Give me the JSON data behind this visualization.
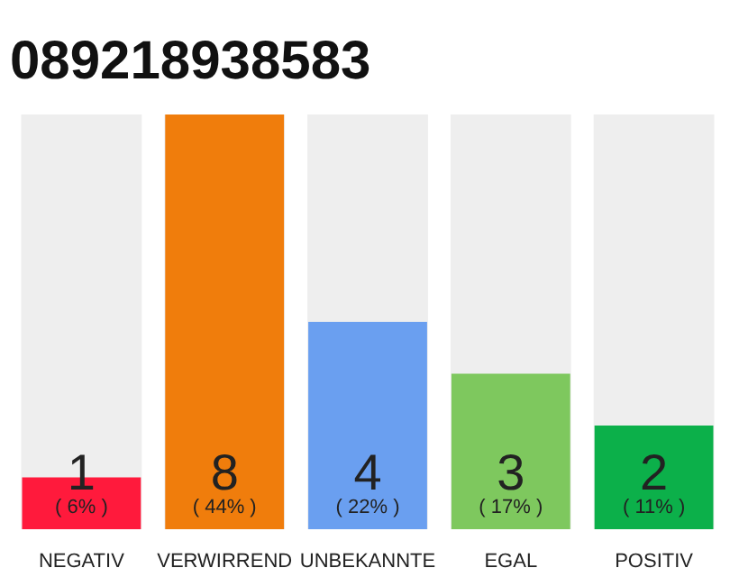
{
  "chart_data": {
    "type": "bar",
    "title": "089218938583",
    "categories": [
      "NEGATIV",
      "VERWIRREND",
      "UNBEKANNTE",
      "EGAL",
      "POSITIV"
    ],
    "values": [
      1,
      8,
      4,
      3,
      2
    ],
    "colors": [
      "#ff1a3c",
      "#f07d0c",
      "#6a9ff0",
      "#7ec85e",
      "#0cb04a"
    ],
    "ylim": [
      0,
      8
    ],
    "tick_labels": "x",
    "grid": false,
    "data_labels": true,
    "annotations": [
      {
        "text": "( 6% )",
        "x": "NEGATIV",
        "y": 0
      },
      {
        "text": "( 44% )",
        "x": "VERWIRREND",
        "y": 0
      },
      {
        "text": "( 22% )",
        "x": "UNBEKANNTE",
        "y": 0
      },
      {
        "text": "( 17% )",
        "x": "EGAL",
        "y": 0
      },
      {
        "text": "( 11% )",
        "x": "POSITIV",
        "y": 0
      }
    ]
  }
}
